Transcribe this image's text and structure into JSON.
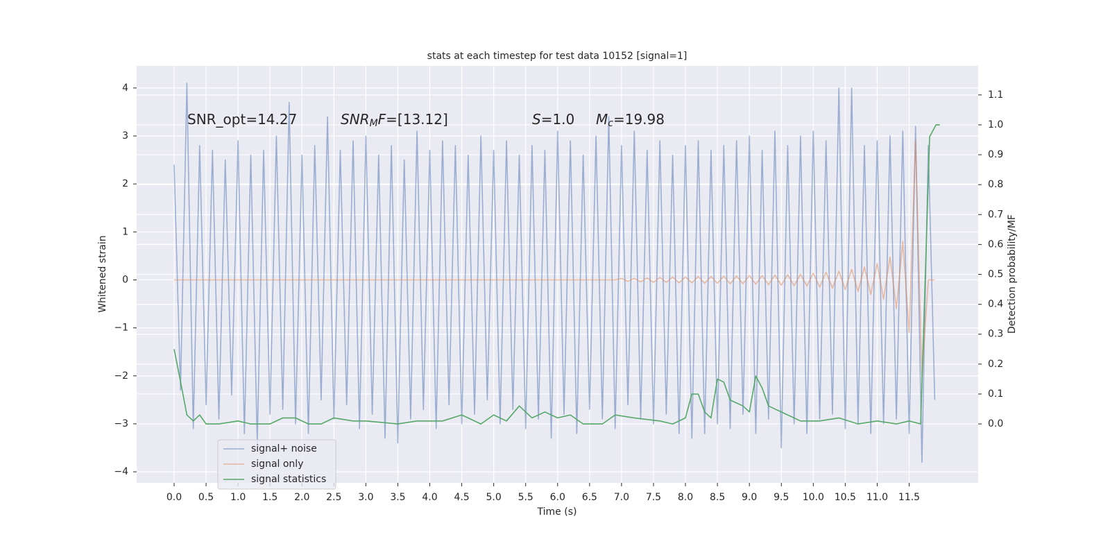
{
  "chart_data": {
    "type": "line",
    "title": "stats at each timestep for test data 10152 [signal=1]",
    "x_label": "Time (s)",
    "y_label": "Whitened strain",
    "y2_label": "Detection probability/MF",
    "annotations": [
      {
        "parts": [
          {
            "text": "SNR_opt=14.27"
          }
        ]
      },
      {
        "parts": [
          {
            "text": "SNR",
            "italic": true
          },
          {
            "text": "M",
            "italic": true,
            "sub": true
          },
          {
            "text": "F",
            "italic": true
          },
          {
            "text": "=[13.12]"
          }
        ]
      },
      {
        "parts": [
          {
            "text": "S",
            "italic": true
          },
          {
            "text": "=1.0"
          }
        ]
      },
      {
        "parts": [
          {
            "text": "M",
            "italic": true
          },
          {
            "text": "c",
            "italic": true,
            "sub": true
          },
          {
            "text": "=19.98"
          }
        ]
      }
    ],
    "xlim": [
      -0.586,
      12.58
    ],
    "ylim": [
      -4.23,
      4.46
    ],
    "y2lim": [
      -0.197,
      1.197
    ],
    "xticks": [
      {
        "value": 0,
        "label": "0.0"
      },
      0.5,
      {
        "value": 1,
        "label": "1.0"
      },
      1.5,
      {
        "value": 2,
        "label": "2.0"
      },
      2.5,
      {
        "value": 3,
        "label": "3.0"
      },
      3.5,
      {
        "value": 4,
        "label": "4.0"
      },
      4.5,
      {
        "value": 5,
        "label": "5.0"
      },
      5.5,
      {
        "value": 6,
        "label": "6.0"
      },
      6.5,
      {
        "value": 7,
        "label": "7.0"
      },
      7.5,
      {
        "value": 8,
        "label": "8.0"
      },
      8.5,
      {
        "value": 9,
        "label": "9.0"
      },
      9.5,
      {
        "value": 10,
        "label": "10.0"
      },
      10.5,
      {
        "value": 11,
        "label": "11.0"
      },
      11.5
    ],
    "yticks": [
      {
        "value": -4,
        "label": "−4"
      },
      {
        "value": -3,
        "label": "−3"
      },
      {
        "value": -2,
        "label": "−2"
      },
      {
        "value": -1,
        "label": "−1"
      },
      0,
      1,
      2,
      3,
      4
    ],
    "y2ticks": [
      {
        "value": 0,
        "label": "0.0"
      },
      0.1,
      0.2,
      0.3,
      0.4,
      0.5,
      0.6,
      0.7,
      0.8,
      0.9,
      {
        "value": 1,
        "label": "1.0"
      },
      1.1
    ],
    "grid": true,
    "legend": "lower left",
    "series": [
      {
        "name": "signal+ noise",
        "color": "#4c72b0",
        "opacity": 0.5,
        "x": [
          0.0,
          0.1,
          0.2,
          0.3,
          0.4,
          0.5,
          0.6,
          0.7,
          0.8,
          0.9,
          1.0,
          1.1,
          1.2,
          1.3,
          1.4,
          1.5,
          1.6,
          1.7,
          1.8,
          1.9,
          2.0,
          2.1,
          2.2,
          2.3,
          2.4,
          2.5,
          2.6,
          2.7,
          2.8,
          2.9,
          3.0,
          3.1,
          3.2,
          3.3,
          3.4,
          3.5,
          3.6,
          3.7,
          3.8,
          3.9,
          4.0,
          4.1,
          4.2,
          4.3,
          4.4,
          4.5,
          4.6,
          4.7,
          4.8,
          4.9,
          5.0,
          5.1,
          5.2,
          5.3,
          5.4,
          5.5,
          5.6,
          5.7,
          5.8,
          5.9,
          6.0,
          6.1,
          6.2,
          6.3,
          6.4,
          6.5,
          6.6,
          6.7,
          6.8,
          6.9,
          7.0,
          7.1,
          7.2,
          7.3,
          7.4,
          7.5,
          7.6,
          7.7,
          7.8,
          7.9,
          8.0,
          8.1,
          8.2,
          8.3,
          8.4,
          8.5,
          8.6,
          8.7,
          8.8,
          8.9,
          9.0,
          9.1,
          9.2,
          9.3,
          9.4,
          9.5,
          9.6,
          9.7,
          9.8,
          9.9,
          10.0,
          10.1,
          10.2,
          10.3,
          10.4,
          10.5,
          10.6,
          10.7,
          10.8,
          10.9,
          11.0,
          11.1,
          11.2,
          11.3,
          11.4,
          11.5,
          11.6,
          11.7,
          11.8,
          11.9
        ],
        "values": [
          2.4,
          -2.3,
          4.1,
          -3.1,
          2.8,
          -2.6,
          2.7,
          -2.9,
          2.5,
          -2.4,
          2.9,
          -3.2,
          2.6,
          -3.4,
          2.7,
          -2.8,
          3.0,
          -2.7,
          3.7,
          -3.0,
          2.6,
          -3.2,
          2.8,
          -2.5,
          3.4,
          -2.9,
          2.7,
          -2.6,
          2.9,
          -3.1,
          3.0,
          -2.8,
          2.6,
          -3.3,
          2.8,
          -3.4,
          2.5,
          -2.9,
          3.1,
          -2.7,
          2.7,
          -3.1,
          2.9,
          -2.6,
          2.8,
          -3.0,
          2.6,
          -2.8,
          3.0,
          -2.5,
          2.7,
          -3.0,
          2.9,
          -2.7,
          2.6,
          -3.1,
          2.8,
          -2.9,
          2.7,
          -3.3,
          3.1,
          -2.8,
          2.9,
          -3.2,
          2.6,
          -2.7,
          3.0,
          -2.9,
          3.4,
          -3.1,
          2.8,
          -2.6,
          3.1,
          -2.9,
          2.7,
          -3.0,
          2.9,
          -2.8,
          2.6,
          -3.2,
          2.8,
          -3.3,
          2.9,
          -3.2,
          2.7,
          -3.0,
          2.8,
          -3.1,
          2.9,
          -2.8,
          3.0,
          -3.2,
          2.7,
          -2.9,
          3.1,
          -3.5,
          2.8,
          -3.0,
          3.0,
          -3.2,
          3.1,
          -2.9,
          2.9,
          -2.8,
          4.0,
          -3.1,
          4.0,
          -3.0,
          2.8,
          -3.2,
          2.9,
          -3.0,
          3.0,
          -2.9,
          3.1,
          -3.2,
          3.2,
          -3.8,
          2.8,
          -2.5
        ]
      },
      {
        "name": "signal only",
        "color": "#dd8452",
        "opacity": 0.5,
        "x": [
          0.0,
          6.9,
          7.0,
          7.1,
          7.2,
          7.3,
          7.4,
          7.5,
          7.6,
          7.7,
          7.8,
          7.9,
          8.0,
          8.1,
          8.2,
          8.3,
          8.4,
          8.5,
          8.6,
          8.7,
          8.8,
          8.9,
          9.0,
          9.1,
          9.2,
          9.3,
          9.4,
          9.5,
          9.6,
          9.7,
          9.8,
          9.9,
          10.0,
          10.1,
          10.2,
          10.3,
          10.4,
          10.5,
          10.6,
          10.7,
          10.8,
          10.9,
          11.0,
          11.1,
          11.2,
          11.3,
          11.4,
          11.5,
          11.6,
          11.7,
          11.8,
          11.9
        ],
        "values": [
          0,
          0,
          0.03,
          -0.03,
          0.03,
          -0.04,
          0.04,
          -0.05,
          0.05,
          -0.05,
          0.06,
          -0.06,
          0.06,
          -0.06,
          0.07,
          -0.07,
          0.07,
          -0.07,
          0.08,
          -0.08,
          0.08,
          -0.08,
          0.09,
          -0.09,
          0.09,
          -0.1,
          0.1,
          -0.11,
          0.11,
          -0.12,
          0.12,
          -0.13,
          0.14,
          -0.15,
          0.16,
          -0.17,
          0.18,
          -0.2,
          0.22,
          -0.24,
          0.27,
          -0.3,
          0.34,
          -0.4,
          0.48,
          -0.6,
          0.8,
          -1.1,
          2.9,
          -2.0,
          0,
          0
        ]
      },
      {
        "name": "signal statistics",
        "color": "#55a868",
        "axis": "y2",
        "x": [
          0.0,
          0.12,
          0.2,
          0.3,
          0.4,
          0.5,
          0.7,
          1.0,
          1.2,
          1.5,
          1.7,
          1.9,
          2.1,
          2.3,
          2.5,
          2.8,
          3.0,
          3.5,
          3.8,
          4.2,
          4.5,
          4.8,
          5.0,
          5.2,
          5.4,
          5.6,
          5.8,
          6.0,
          6.2,
          6.4,
          6.7,
          6.9,
          7.2,
          7.6,
          7.8,
          8.0,
          8.1,
          8.2,
          8.3,
          8.4,
          8.5,
          8.6,
          8.7,
          8.9,
          9.0,
          9.1,
          9.2,
          9.3,
          9.6,
          9.8,
          10.1,
          10.4,
          10.7,
          11.0,
          11.3,
          11.5,
          11.68,
          11.82,
          11.92,
          11.98
        ],
        "values": [
          0.25,
          0.12,
          0.03,
          0.01,
          0.03,
          0.0,
          0.0,
          0.01,
          0.0,
          0.0,
          0.02,
          0.02,
          0.0,
          0.0,
          0.02,
          0.01,
          0.01,
          0.0,
          0.01,
          0.01,
          0.03,
          0.0,
          0.03,
          0.01,
          0.06,
          0.02,
          0.04,
          0.02,
          0.03,
          0.0,
          0.0,
          0.03,
          0.02,
          0.01,
          0.0,
          0.02,
          0.1,
          0.1,
          0.04,
          0.02,
          0.15,
          0.14,
          0.08,
          0.06,
          0.04,
          0.16,
          0.12,
          0.06,
          0.03,
          0.01,
          0.01,
          0.02,
          0.0,
          0.01,
          0.0,
          0.01,
          0.0,
          0.96,
          1.0,
          1.0
        ]
      }
    ]
  }
}
